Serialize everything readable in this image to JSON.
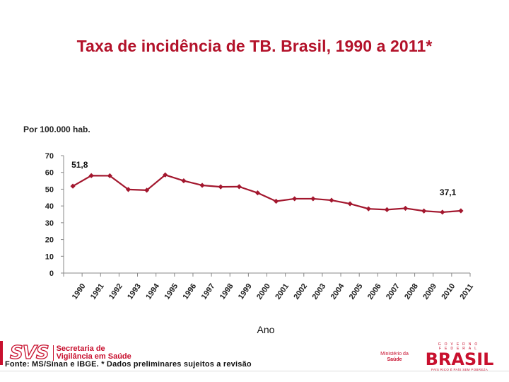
{
  "title": "Taxa de incidência de TB. Brasil, 1990 a 2011*",
  "chart_data": {
    "type": "line",
    "title": "Taxa de incidência de TB. Brasil, 1990 a 2011*",
    "ylabel": "Por 100.000 hab.",
    "xlabel": "Ano",
    "ylim": [
      0,
      70
    ],
    "yticks": [
      0,
      10,
      20,
      30,
      40,
      50,
      60,
      70
    ],
    "categories": [
      "1990",
      "1991",
      "1992",
      "1993",
      "1994",
      "1995",
      "1996",
      "1997",
      "1998",
      "1999",
      "2000",
      "2001",
      "2002",
      "2003",
      "2004",
      "2005",
      "2006",
      "2007",
      "2008",
      "2009",
      "2010",
      "2011"
    ],
    "series": [
      {
        "name": "Taxa de incidência",
        "color": "#a3172e",
        "values": [
          51.8,
          58.1,
          58.0,
          49.8,
          49.4,
          58.5,
          55.0,
          52.3,
          51.4,
          51.5,
          47.8,
          42.8,
          44.3,
          44.3,
          43.4,
          41.3,
          38.3,
          37.8,
          38.6,
          37.0,
          36.3,
          37.1
        ]
      }
    ],
    "annotations": [
      {
        "label": "51,8",
        "year": "1990"
      },
      {
        "label": "37,1",
        "year": "2011"
      }
    ]
  },
  "footer": {
    "svs_mark": "SVS",
    "svs_line1": "Secretaria de",
    "svs_line2": "Vigilância em Saúde",
    "source": "Fonte: MS/Sinan e IBGE. * Dados preliminares sujeitos a revisão",
    "ministerio_line1": "Ministério da",
    "ministerio_line2": "Saúde",
    "brasil_gov": "GOVERNO FEDERAL",
    "brasil_word": "BRASIL",
    "brasil_motto": "PAÍS RICO É PAÍS SEM POBREZA"
  },
  "colors": {
    "accent": "#c8102e",
    "line": "#a3172e"
  }
}
